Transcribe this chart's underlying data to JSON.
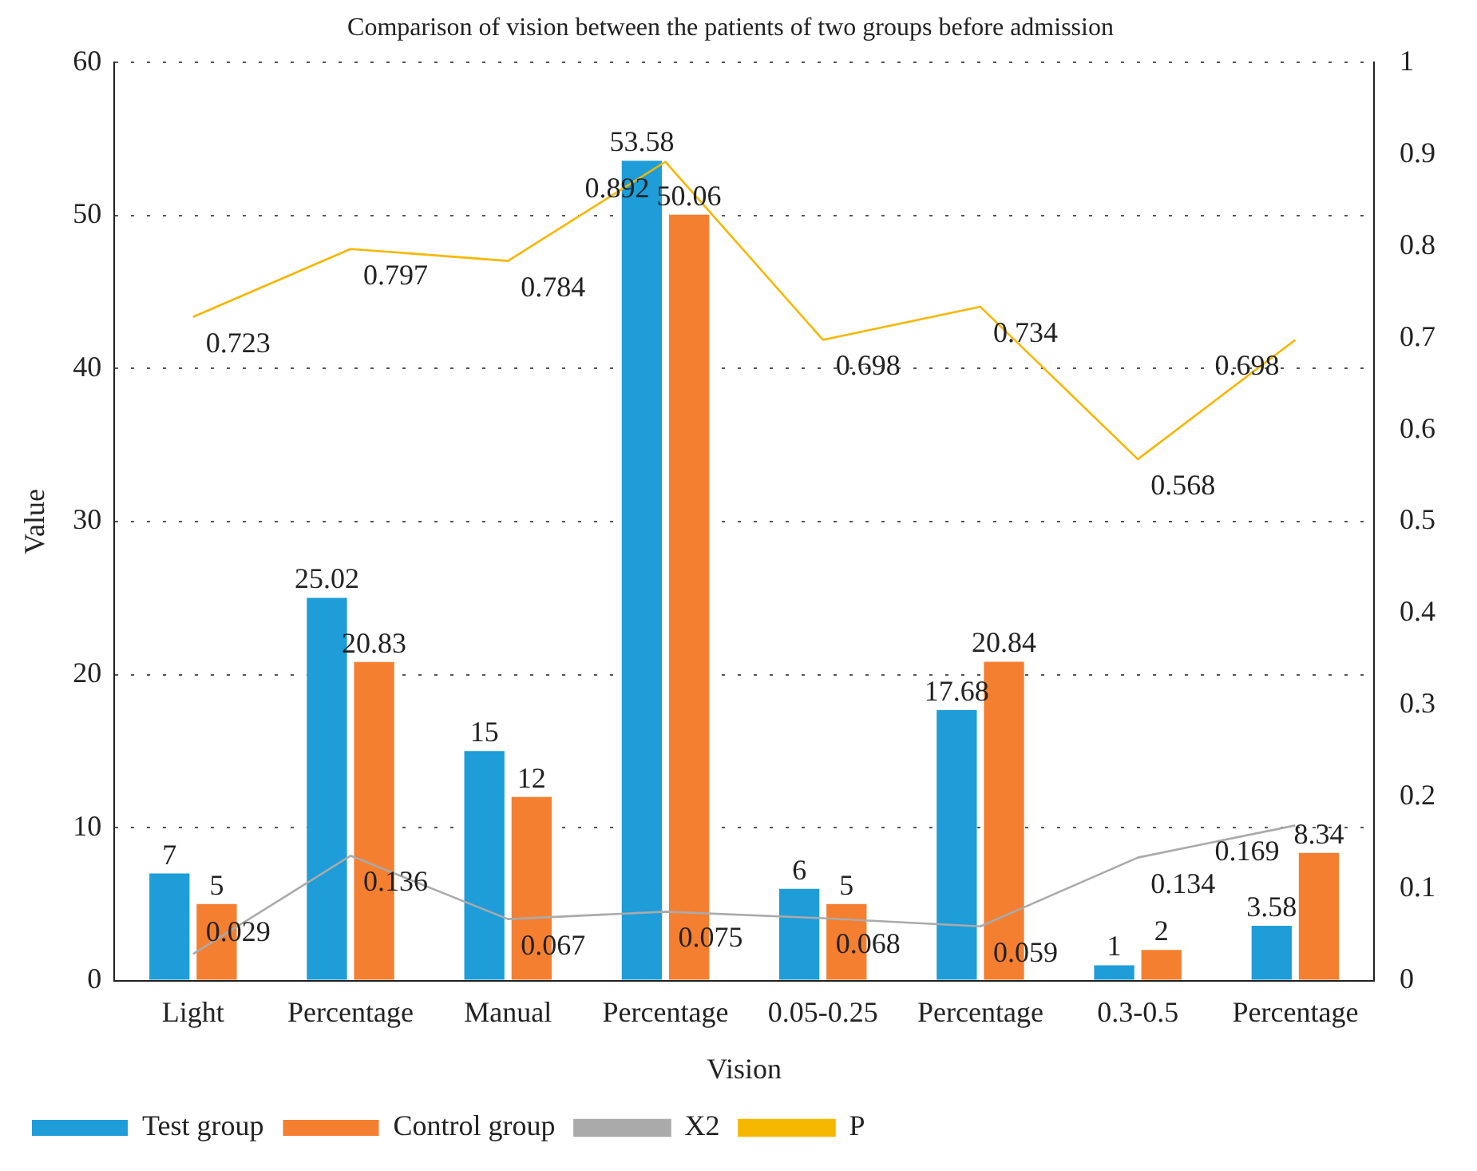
{
  "chart_data": {
    "type": "bar",
    "title": "Comparison of vision between the patients of two groups before admission",
    "xlabel": "Vision",
    "ylabel": "Value",
    "categories": [
      "Light",
      "Percentage",
      "Manual",
      "Percentage",
      "0.05-0.25",
      "Percentage",
      "0.3-0.5",
      "Percentage"
    ],
    "series": [
      {
        "name": "Test group",
        "color": "#1e9dd8",
        "values": [
          7,
          25.02,
          15,
          53.58,
          6,
          17.68,
          1,
          3.58
        ]
      },
      {
        "name": "Control group",
        "color": "#f47f30",
        "values": [
          5,
          20.83,
          12,
          50.06,
          5,
          20.84,
          2,
          8.34
        ]
      },
      {
        "name": "X2",
        "type": "line",
        "axis": "y2",
        "color": "#aaaaaa",
        "values": [
          0.029,
          0.136,
          0.067,
          0.075,
          0.068,
          0.059,
          0.134,
          0.169
        ]
      },
      {
        "name": "P",
        "type": "line",
        "axis": "y2",
        "color": "#f5b700",
        "values": [
          0.723,
          0.797,
          0.784,
          0.892,
          0.698,
          0.734,
          0.568,
          0.698
        ]
      }
    ],
    "ylim": [
      0,
      60
    ],
    "yticks": [
      0,
      10,
      20,
      30,
      40,
      50,
      60
    ],
    "y2lim": [
      0,
      1
    ],
    "y2ticks": [
      0,
      0.1,
      0.2,
      0.3,
      0.4,
      0.5,
      0.6,
      0.7,
      0.8,
      0.9,
      1
    ],
    "grid": "y",
    "legend": "bottom",
    "data_labels": true,
    "marker": "none",
    "line_style": "solid"
  }
}
